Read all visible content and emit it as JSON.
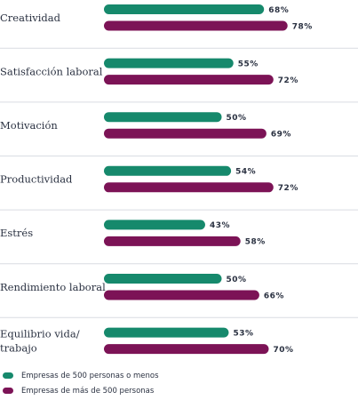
{
  "chart_data": {
    "type": "bar",
    "orientation": "horizontal",
    "categories": [
      "Creatividad",
      "Satisfacción laboral",
      "Motivación",
      "Productividad",
      "Estrés",
      "Rendimiento laboral",
      "Equilibrio vida/ trabajo"
    ],
    "series": [
      {
        "name": "Empresas de 500 personas o menos",
        "color": "#16896c",
        "values": [
          68,
          55,
          50,
          54,
          43,
          50,
          53
        ],
        "labels": [
          "68%",
          "55%",
          "50%",
          "54%",
          "43%",
          "50%",
          "53%"
        ]
      },
      {
        "name": "Empresas de más de 500 personas",
        "color": "#7c1356",
        "values": [
          78,
          72,
          69,
          72,
          58,
          66,
          70
        ],
        "labels": [
          "78%",
          "72%",
          "69%",
          "72%",
          "58%",
          "66%",
          "70%"
        ]
      }
    ],
    "xlim": [
      0,
      100
    ],
    "grid": false,
    "legend_position": "bottom-left"
  }
}
